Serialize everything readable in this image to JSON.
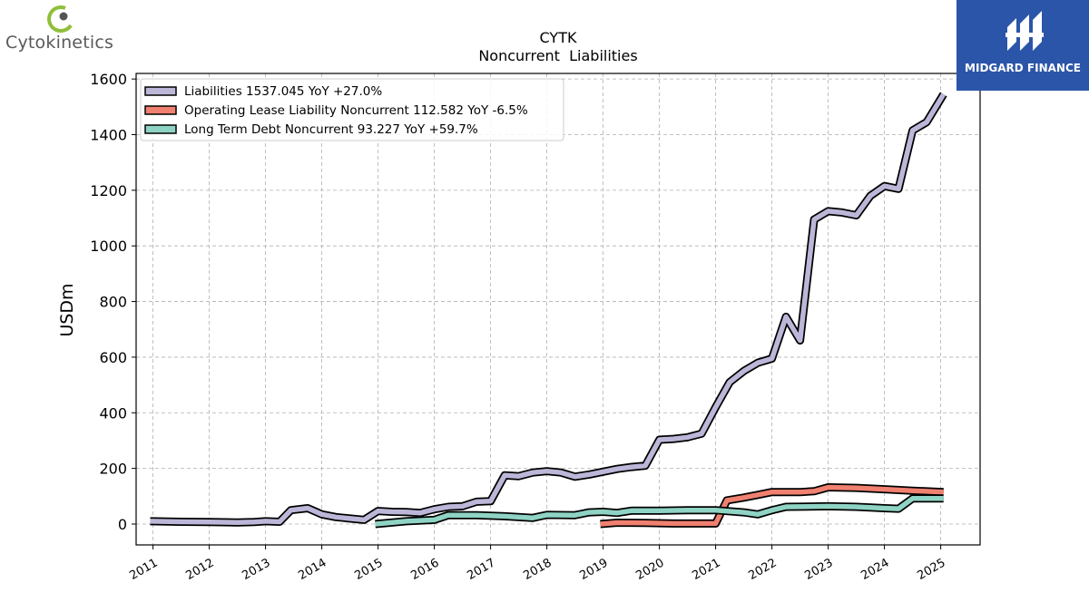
{
  "brand_left": {
    "name": "Cytokinetics"
  },
  "brand_right": {
    "name": "MIDGARD FINANCE"
  },
  "chart_data": {
    "type": "line",
    "title": "CYTK",
    "subtitle": "Noncurrent  Liabilities",
    "ylabel": "USDm",
    "xlabel": "",
    "xlim": [
      2010.7,
      2025.7
    ],
    "ylim": [
      -75,
      1620
    ],
    "yticks": [
      0,
      200,
      400,
      600,
      800,
      1000,
      1200,
      1400,
      1600
    ],
    "xticks": [
      2011,
      2012,
      2013,
      2014,
      2015,
      2016,
      2017,
      2018,
      2019,
      2020,
      2021,
      2022,
      2023,
      2024,
      2025
    ],
    "grid": true,
    "legend_position": "top-left",
    "series": [
      {
        "name": "Liabilities",
        "legend": "Liabilities  1537.045 YoY +27.0%",
        "color": "#bcb7d8",
        "points": [
          [
            2010.95,
            10
          ],
          [
            2011.5,
            8
          ],
          [
            2012.0,
            7
          ],
          [
            2012.5,
            6
          ],
          [
            2012.8,
            7
          ],
          [
            2013.0,
            10
          ],
          [
            2013.25,
            8
          ],
          [
            2013.45,
            50
          ],
          [
            2013.75,
            57
          ],
          [
            2014.0,
            35
          ],
          [
            2014.25,
            25
          ],
          [
            2014.5,
            20
          ],
          [
            2014.75,
            15
          ],
          [
            2015.0,
            47
          ],
          [
            2015.25,
            44
          ],
          [
            2015.5,
            43
          ],
          [
            2015.75,
            40
          ],
          [
            2016.0,
            53
          ],
          [
            2016.25,
            62
          ],
          [
            2016.5,
            64
          ],
          [
            2016.75,
            80
          ],
          [
            2017.0,
            82
          ],
          [
            2017.25,
            175
          ],
          [
            2017.5,
            172
          ],
          [
            2017.75,
            185
          ],
          [
            2018.0,
            190
          ],
          [
            2018.25,
            185
          ],
          [
            2018.5,
            170
          ],
          [
            2018.75,
            178
          ],
          [
            2019.0,
            188
          ],
          [
            2019.25,
            198
          ],
          [
            2019.5,
            205
          ],
          [
            2019.75,
            210
          ],
          [
            2020.0,
            303
          ],
          [
            2020.25,
            306
          ],
          [
            2020.5,
            312
          ],
          [
            2020.75,
            325
          ],
          [
            2021.0,
            420
          ],
          [
            2021.25,
            510
          ],
          [
            2021.5,
            550
          ],
          [
            2021.75,
            580
          ],
          [
            2022.0,
            595
          ],
          [
            2022.25,
            745
          ],
          [
            2022.5,
            660
          ],
          [
            2022.75,
            1095
          ],
          [
            2023.0,
            1125
          ],
          [
            2023.25,
            1120
          ],
          [
            2023.5,
            1110
          ],
          [
            2023.75,
            1180
          ],
          [
            2024.0,
            1215
          ],
          [
            2024.25,
            1205
          ],
          [
            2024.5,
            1415
          ],
          [
            2024.75,
            1445
          ],
          [
            2025.05,
            1545
          ]
        ]
      },
      {
        "name": "Operating Lease Liability Noncurrent",
        "legend": "Operating Lease Liability Noncurrent  112.582 YoY -6.5%",
        "color": "#f08070",
        "points": [
          [
            2018.95,
            0
          ],
          [
            2019.25,
            5
          ],
          [
            2019.75,
            4
          ],
          [
            2020.25,
            2
          ],
          [
            2021.0,
            2
          ],
          [
            2021.2,
            85
          ],
          [
            2021.5,
            95
          ],
          [
            2021.75,
            105
          ],
          [
            2022.0,
            115
          ],
          [
            2022.5,
            115
          ],
          [
            2022.75,
            118
          ],
          [
            2023.0,
            132
          ],
          [
            2023.5,
            130
          ],
          [
            2024.0,
            125
          ],
          [
            2024.5,
            120
          ],
          [
            2025.05,
            115
          ]
        ]
      },
      {
        "name": "Long Term Debt Noncurrent",
        "legend": "Long Term Debt Noncurrent  93.227 YoY +59.7%",
        "color": "#8fd3c4",
        "points": [
          [
            2014.95,
            0
          ],
          [
            2015.5,
            10
          ],
          [
            2016.0,
            15
          ],
          [
            2016.25,
            32
          ],
          [
            2016.75,
            32
          ],
          [
            2017.25,
            28
          ],
          [
            2017.75,
            22
          ],
          [
            2018.0,
            33
          ],
          [
            2018.5,
            32
          ],
          [
            2018.75,
            42
          ],
          [
            2019.0,
            44
          ],
          [
            2019.25,
            40
          ],
          [
            2019.5,
            48
          ],
          [
            2020.0,
            48
          ],
          [
            2020.5,
            50
          ],
          [
            2021.0,
            50
          ],
          [
            2021.5,
            42
          ],
          [
            2021.75,
            35
          ],
          [
            2022.0,
            50
          ],
          [
            2022.25,
            62
          ],
          [
            2023.0,
            64
          ],
          [
            2023.5,
            62
          ],
          [
            2024.0,
            57
          ],
          [
            2024.25,
            55
          ],
          [
            2024.5,
            92
          ],
          [
            2025.05,
            92
          ]
        ]
      }
    ]
  }
}
